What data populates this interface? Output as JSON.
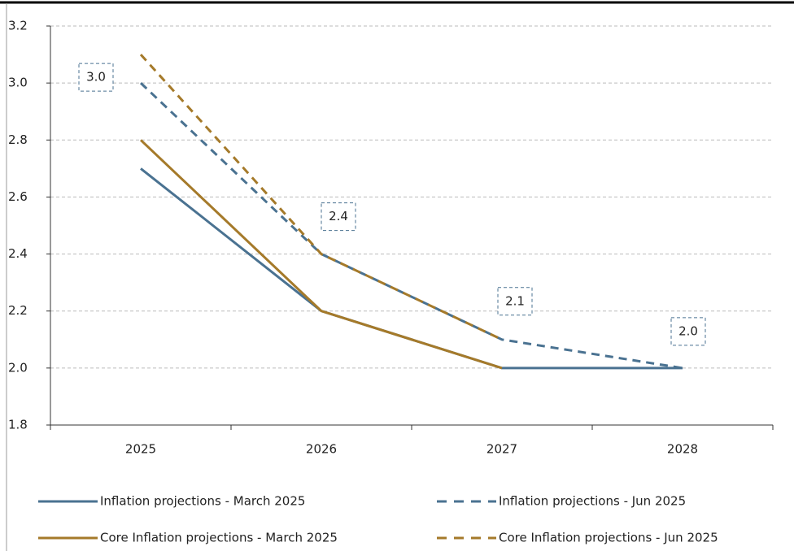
{
  "chart_data": {
    "type": "line",
    "categories": [
      "2025",
      "2026",
      "2027",
      "2028"
    ],
    "series": [
      {
        "name": "Inflation projections - March 2025",
        "color": "#4a7291",
        "dashed": false,
        "values": [
          2.7,
          2.2,
          2.0,
          2.0
        ]
      },
      {
        "name": "Inflation projections - Jun 2025",
        "color": "#4a7291",
        "dashed": true,
        "values": [
          3.0,
          2.4,
          2.1,
          2.0
        ],
        "value_labels": [
          "3.0",
          "2.4",
          "2.1",
          "2.0"
        ]
      },
      {
        "name": "Core Inflation projections - March 2025",
        "color": "#a57a2a",
        "dashed": false,
        "values": [
          2.8,
          2.2,
          2.0,
          null
        ]
      },
      {
        "name": "Core Inflation projections - Jun 2025",
        "color": "#a57a2a",
        "dashed": true,
        "values": [
          3.1,
          2.4,
          2.1,
          null
        ]
      }
    ],
    "ylim": [
      1.8,
      3.2
    ],
    "yticks": [
      {
        "value": 1.8,
        "label": "1.8"
      },
      {
        "value": 2.0,
        "label": "2.0"
      },
      {
        "value": 2.2,
        "label": "2.2"
      },
      {
        "value": 2.4,
        "label": "2.4"
      },
      {
        "value": 2.6,
        "label": "2.6"
      },
      {
        "value": 2.8,
        "label": "2.8"
      },
      {
        "value": 3.0,
        "label": "3.0"
      },
      {
        "value": 3.2,
        "label": "3.2"
      }
    ],
    "grid": true,
    "legend": "bottom"
  }
}
